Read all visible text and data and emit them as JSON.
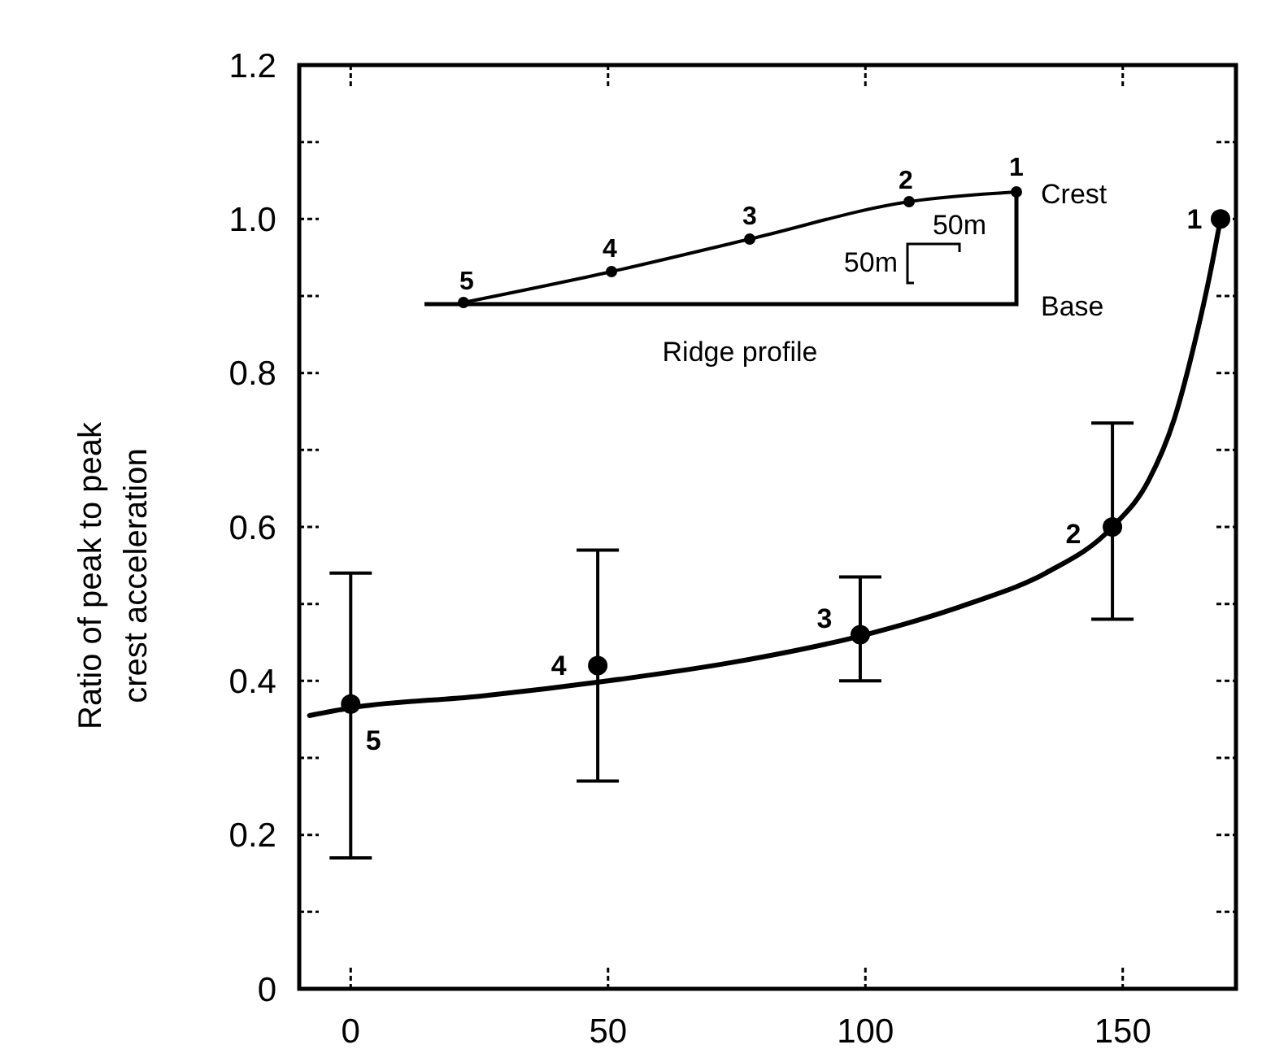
{
  "chart_data": {
    "type": "scatter",
    "ylabel": "Ratio of peak to peak\ncrest acceleration",
    "xlim": [
      -10,
      172
    ],
    "xticks": [
      0,
      50,
      100,
      150
    ],
    "ylim": [
      0,
      1.2
    ],
    "yticks": [
      0,
      {
        "value": 0.1,
        "label": null
      },
      {
        "value": 0.2,
        "label": "0.2"
      },
      {
        "value": 0.3,
        "label": null
      },
      {
        "value": 0.4,
        "label": "0.4"
      },
      {
        "value": 0.5,
        "label": null
      },
      {
        "value": 0.6,
        "label": "0.6"
      },
      {
        "value": 0.7,
        "label": null
      },
      {
        "value": 0.8,
        "label": "0.8"
      },
      {
        "value": 0.9,
        "label": null
      },
      {
        "value": 1,
        "label": "1.0"
      },
      {
        "value": 1.1,
        "label": null
      },
      {
        "value": 1.2,
        "label": "1.2"
      }
    ],
    "series": [
      {
        "type": "line",
        "color": "#000000",
        "marker": "none",
        "line_style": "solid",
        "x": [
          -8,
          0,
          25,
          50,
          75,
          100,
          120,
          135,
          148,
          155,
          160,
          164,
          167,
          169
        ],
        "values": [
          0.355,
          0.365,
          0.38,
          0.4,
          0.425,
          0.46,
          0.5,
          0.54,
          0.6,
          0.66,
          0.74,
          0.84,
          0.93,
          1.0
        ]
      },
      {
        "color": "#000000",
        "marker": "circle",
        "x": [
          0,
          48,
          99,
          148,
          169
        ],
        "values": [
          0.37,
          0.42,
          0.46,
          0.6,
          1.0
        ],
        "errors": [
          [
            0.17,
            0.54
          ],
          [
            0.27,
            0.57
          ],
          [
            0.4,
            0.535
          ],
          [
            0.48,
            0.735
          ],
          null
        ]
      }
    ],
    "annotations": [
      {
        "text": "5",
        "x": 0,
        "y": 0.37
      },
      {
        "text": "4",
        "x": 48,
        "y": 0.42
      },
      {
        "text": "3",
        "x": 99,
        "y": 0.46
      },
      {
        "text": "2",
        "x": 148,
        "y": 0.6
      },
      {
        "text": "1",
        "x": 169,
        "y": 1.0
      },
      "Ridge profile",
      "Crest",
      "Base",
      "50m",
      "50m",
      "1",
      "2",
      "3",
      "4",
      "5"
    ]
  }
}
